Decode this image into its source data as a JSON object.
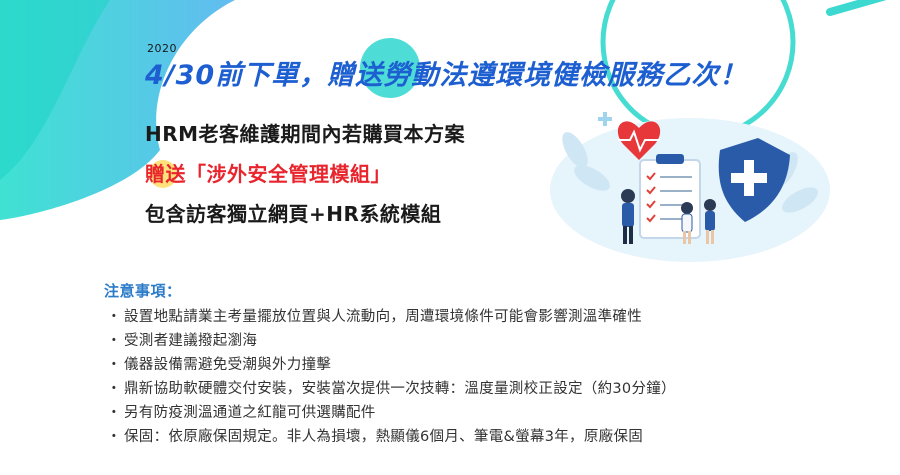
{
  "promo": {
    "year": "2020",
    "headline": "4/30前下單，贈送勞動法遵環境健檢服務乙次！",
    "line1": "HRM老客維護期間內若購買本方案",
    "line2_gift": "贈送",
    "line2_module": "「涉外安全管理模組」",
    "line3": "包含訪客獨立網頁+HR系統模組"
  },
  "notes": {
    "title": "注意事項：",
    "bullet": "・",
    "items": [
      "設置地點請業主考量擺放位置與人流動向，周遭環境條件可能會影響測溫準確性",
      "受測者建議撥起瀏海",
      "儀器設備需避免受潮與外力撞擊",
      "鼎新協助軟硬體交付安裝，安裝當次提供一次技轉：溫度量測校正設定（約30分鐘）",
      "另有防疫測溫通道之紅龍可供選購配件",
      "保固：依原廠保固規定。非人為損壞，熱顯儀6個月、筆電&螢幕3年，原廠保固"
    ]
  },
  "colors": {
    "headline": "#1d5fd1",
    "gift": "#e8252d",
    "notes_title": "#2c7bc9",
    "teal": "#2fd6d0",
    "blob": "#fde17a"
  },
  "icons": [
    "heart-icon",
    "shield-cross-icon",
    "clipboard-checklist-icon",
    "leaf-icon"
  ]
}
